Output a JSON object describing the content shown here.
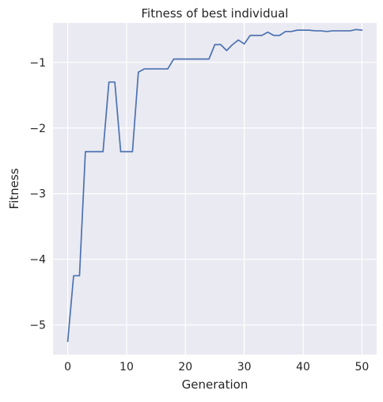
{
  "chart_data": {
    "type": "line",
    "title": "Fitness of best individual",
    "xlabel": "Generation",
    "ylabel": "Fitness",
    "xlim": [
      -2.5,
      52.5
    ],
    "ylim": [
      -5.45,
      -0.4
    ],
    "xticks": [
      0,
      10,
      20,
      30,
      40,
      50
    ],
    "yticks": [
      -5,
      -4,
      -3,
      -2,
      -1
    ],
    "xtick_labels": [
      "0",
      "10",
      "20",
      "30",
      "40",
      "50"
    ],
    "ytick_labels": [
      "−5",
      "−4",
      "−3",
      "−2",
      "−1"
    ],
    "grid": true,
    "background": "#eaeaf2",
    "grid_color": "#ffffff",
    "line_color": "#4c72b0",
    "series": [
      {
        "x": [
          0,
          1,
          2,
          3,
          4,
          5,
          6,
          7,
          8,
          9,
          10,
          11,
          12,
          13,
          14,
          15,
          16,
          17,
          18,
          19,
          20,
          21,
          22,
          23,
          24,
          25,
          26,
          27,
          28,
          29,
          30,
          31,
          32,
          33,
          34,
          35,
          36,
          37,
          38,
          39,
          40,
          41,
          42,
          43,
          44,
          45,
          46,
          47,
          48,
          49,
          50
        ],
        "values": [
          -5.25,
          -4.25,
          -4.25,
          -2.36,
          -2.36,
          -2.36,
          -2.36,
          -1.3,
          -1.3,
          -2.36,
          -2.36,
          -2.36,
          -1.15,
          -1.1,
          -1.1,
          -1.1,
          -1.1,
          -1.1,
          -0.95,
          -0.95,
          -0.95,
          -0.95,
          -0.95,
          -0.95,
          -0.95,
          -0.73,
          -0.73,
          -0.82,
          -0.73,
          -0.66,
          -0.72,
          -0.59,
          -0.59,
          -0.59,
          -0.54,
          -0.59,
          -0.59,
          -0.53,
          -0.53,
          -0.51,
          -0.51,
          -0.51,
          -0.52,
          -0.52,
          -0.53,
          -0.52,
          -0.52,
          -0.52,
          -0.52,
          -0.5,
          -0.51
        ]
      }
    ]
  }
}
